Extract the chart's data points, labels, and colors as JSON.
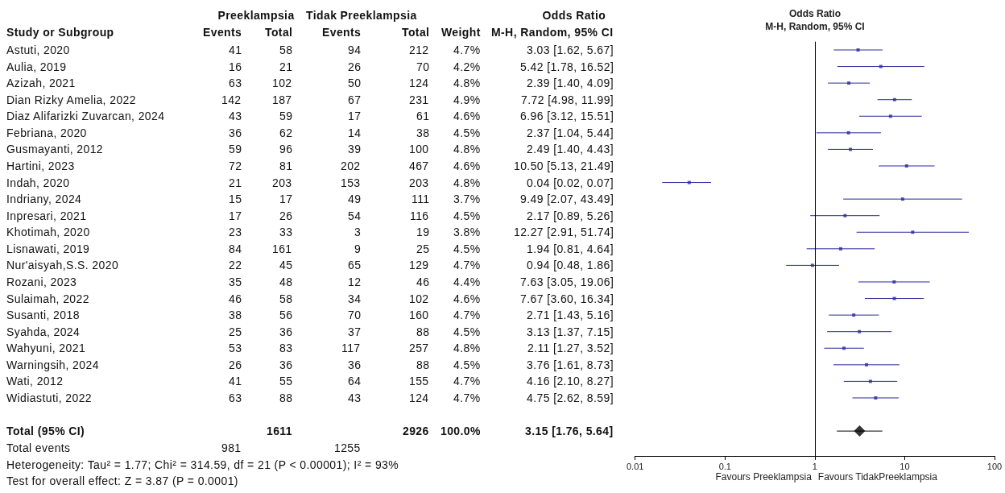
{
  "chart_data": [
    {
      "type": "other",
      "data_labels": true,
      "categories": [
        "Astuti, 2020",
        "Aulia, 2019",
        "Azizah, 2021",
        "Dian Rizky Amelia, 2022",
        "Diaz Alifarizki Zuvarcan, 2024",
        "Febriana, 2020",
        "Gusmayanti, 2012",
        "Hartini, 2023",
        "Indah, 2020",
        "Indriany, 2024",
        "Inpresari, 2021",
        "Khotimah, 2020",
        "Lisnawati, 2019",
        "Nur'aisyah,S.S. 2020",
        "Rozani, 2023",
        "Sulaimah, 2022",
        "Susanti, 2018",
        "Syahda, 2024",
        "Wahyuni, 2021",
        "Warningsih, 2024",
        "Wati, 2012",
        "Widiastuti, 2022",
        null,
        "Total (95% CI)",
        "Total events"
      ],
      "series": [
        {
          "name": "Events",
          "values": [
            41,
            16,
            63,
            142,
            43,
            36,
            59,
            72,
            21,
            15,
            17,
            23,
            84,
            22,
            35,
            46,
            38,
            25,
            53,
            26,
            41,
            63,
            null,
            null,
            981
          ]
        },
        {
          "name": "Total",
          "values": [
            58,
            21,
            102,
            187,
            59,
            62,
            96,
            81,
            203,
            17,
            26,
            33,
            161,
            45,
            48,
            58,
            56,
            36,
            83,
            36,
            55,
            88,
            null,
            1611,
            null
          ]
        },
        {
          "name": "Events",
          "values": [
            94,
            26,
            50,
            67,
            17,
            14,
            39,
            202,
            153,
            49,
            54,
            3,
            9,
            65,
            12,
            34,
            70,
            37,
            117,
            36,
            64,
            43,
            null,
            null,
            1255
          ]
        },
        {
          "name": "Total",
          "values": [
            212,
            70,
            124,
            231,
            61,
            38,
            100,
            467,
            203,
            111,
            116,
            19,
            25,
            129,
            46,
            102,
            160,
            88,
            257,
            88,
            155,
            124,
            null,
            2926,
            null
          ]
        },
        {
          "name": "Weight",
          "values": [
            4.7,
            4.2,
            4.8,
            4.9,
            4.6,
            4.5,
            4.8,
            4.6,
            4.8,
            3.7,
            4.5,
            3.8,
            4.5,
            4.7,
            4.4,
            4.6,
            4.7,
            4.5,
            4.8,
            4.5,
            4.7,
            4.7,
            null,
            100.0,
            null
          ],
          "value_labels": [
            "4.7%",
            "4.2%",
            "4.8%",
            "4.9%",
            "4.6%",
            "4.5%",
            "4.8%",
            "4.6%",
            "4.8%",
            "3.7%",
            "4.5%",
            "3.8%",
            "4.5%",
            "4.7%",
            "4.4%",
            "4.6%",
            "4.7%",
            "4.5%",
            "4.8%",
            "4.5%",
            "4.7%",
            "4.7%",
            null,
            "100.0%",
            null
          ]
        },
        {
          "name": "M-H, Random, 95% CI",
          "values": [
            3.03,
            5.42,
            2.39,
            7.72,
            6.96,
            2.37,
            2.49,
            10.5,
            0.04,
            9.49,
            2.17,
            12.27,
            1.94,
            0.94,
            7.63,
            7.67,
            2.71,
            3.13,
            2.11,
            3.76,
            4.16,
            4.75,
            null,
            3.15,
            null
          ],
          "value_labels": [
            "3.03 [1.62, 5.67]",
            "5.42 [1.78, 16.52]",
            "2.39 [1.40, 4.09]",
            "7.72 [4.98, 11.99]",
            "6.96 [3.12, 15.51]",
            "2.37 [1.04, 5.44]",
            "2.49 [1.40, 4.43]",
            "10.50 [5.13, 21.49]",
            "0.04 [0.02, 0.07]",
            "9.49 [2.07, 43.49]",
            "2.17 [0.89, 5.26]",
            "12.27 [2.91, 51.74]",
            "1.94 [0.81, 4.64]",
            "0.94 [0.48, 1.86]",
            "7.63 [3.05, 19.06]",
            "7.67 [3.60, 16.34]",
            "2.71 [1.43, 5.16]",
            "3.13 [1.37, 7.15]",
            "2.11 [1.27, 3.52]",
            "3.76 [1.61, 8.73]",
            "4.16 [2.10, 8.27]",
            "4.75 [2.62, 8.59]",
            null,
            "3.15 [1.76, 5.64]",
            null
          ]
        }
      ],
      "annotations": [
        "Study or Subgroup",
        "Preeklampsia",
        "Tidak Preeklampsia",
        "Odds Ratio",
        "Heterogeneity: Tau² = 1.77; Chi² = 314.59, df = 21 (P < 0.00001); I² = 93%",
        "Test for overall effect: Z = 3.87 (P = 0.0001)"
      ]
    },
    {
      "type": "scatter",
      "orientation": "horizontal",
      "title": "Odds Ratio",
      "subtitle": "M-H, Random, 95% CI",
      "categories": [
        null,
        null,
        null,
        null,
        null,
        null,
        null,
        null,
        null,
        null,
        null,
        null,
        null,
        null,
        null,
        null,
        null,
        null,
        null,
        null,
        null,
        null,
        null,
        null,
        null
      ],
      "series": [
        {
          "color": "#2a2a9a",
          "marker": "square",
          "values": [
            3.03,
            5.42,
            2.39,
            7.72,
            6.96,
            2.37,
            2.49,
            10.5,
            0.04,
            9.49,
            2.17,
            12.27,
            1.94,
            0.94,
            7.63,
            7.67,
            2.71,
            3.13,
            2.11,
            3.76,
            4.16,
            4.75,
            null,
            null,
            null
          ],
          "errors": [
            [
              1.62,
              5.67
            ],
            [
              1.78,
              16.52
            ],
            [
              1.4,
              4.09
            ],
            [
              4.98,
              11.99
            ],
            [
              3.12,
              15.51
            ],
            [
              1.04,
              5.44
            ],
            [
              1.4,
              4.43
            ],
            [
              5.13,
              21.49
            ],
            [
              0.02,
              0.07
            ],
            [
              2.07,
              43.49
            ],
            [
              0.89,
              5.26
            ],
            [
              2.91,
              51.74
            ],
            [
              0.81,
              4.64
            ],
            [
              0.48,
              1.86
            ],
            [
              3.05,
              19.06
            ],
            [
              3.6,
              16.34
            ],
            [
              1.43,
              5.16
            ],
            [
              1.37,
              7.15
            ],
            [
              1.27,
              3.52
            ],
            [
              1.61,
              8.73
            ],
            [
              2.1,
              8.27
            ],
            [
              2.62,
              8.59
            ],
            null,
            null,
            null
          ]
        },
        {
          "color": "#000000",
          "marker": "diamond",
          "values": [
            null,
            null,
            null,
            null,
            null,
            null,
            null,
            null,
            null,
            null,
            null,
            null,
            null,
            null,
            null,
            null,
            null,
            null,
            null,
            null,
            null,
            null,
            null,
            3.15,
            null
          ],
          "errors": [
            null,
            null,
            null,
            null,
            null,
            null,
            null,
            null,
            null,
            null,
            null,
            null,
            null,
            null,
            null,
            null,
            null,
            null,
            null,
            null,
            null,
            null,
            null,
            [
              1.76,
              5.64
            ],
            null
          ]
        }
      ],
      "log": "x",
      "xlim": [
        0.01,
        100
      ],
      "xticks": [
        0.01,
        0.1,
        1,
        10,
        100
      ],
      "tick_labels": "x",
      "ref_lines": [
        {
          "axis": "x",
          "value": 1
        }
      ],
      "annotations": [
        "Favours Preeklampsia",
        "Favours TidakPreeklampsia"
      ]
    }
  ]
}
